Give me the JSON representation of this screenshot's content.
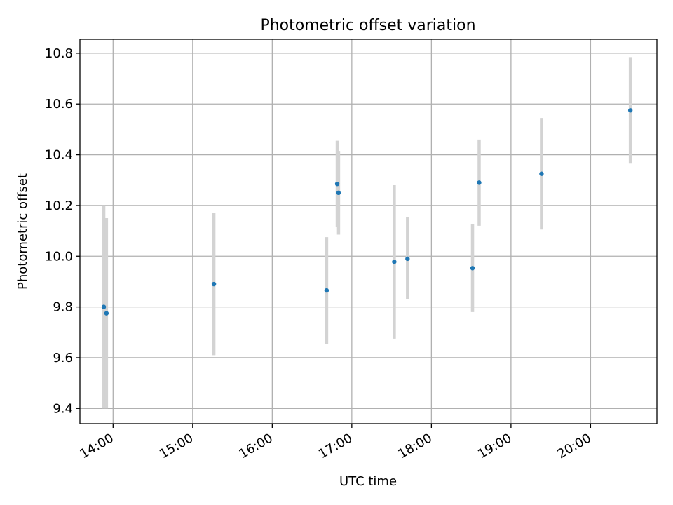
{
  "chart_data": {
    "type": "scatter",
    "title": "Photometric offset variation",
    "xlabel": "UTC time",
    "ylabel": "Photometric offset",
    "x_ticks": [
      "14:00",
      "15:00",
      "16:00",
      "17:00",
      "18:00",
      "19:00",
      "20:00"
    ],
    "y_ticks": [
      "9.4",
      "9.6",
      "9.8",
      "10.0",
      "10.2",
      "10.4",
      "10.6",
      "10.8"
    ],
    "xlim": [
      "13:35",
      "20:50"
    ],
    "ylim": [
      9.34,
      10.855
    ],
    "grid": true,
    "colors": {
      "point": "#1f77b4",
      "errorbar": "#d3d3d3",
      "grid": "#b0b0b0"
    },
    "points": [
      {
        "time": "13:53",
        "y": 9.8,
        "yerr_low": 9.4,
        "yerr_high": 10.2
      },
      {
        "time": "13:55",
        "y": 9.775,
        "yerr_low": 9.4,
        "yerr_high": 10.15
      },
      {
        "time": "15:16",
        "y": 9.89,
        "yerr_low": 9.61,
        "yerr_high": 10.17
      },
      {
        "time": "16:41",
        "y": 9.865,
        "yerr_low": 9.655,
        "yerr_high": 10.075
      },
      {
        "time": "16:49",
        "y": 10.285,
        "yerr_low": 10.115,
        "yerr_high": 10.455
      },
      {
        "time": "16:50",
        "y": 10.25,
        "yerr_low": 10.085,
        "yerr_high": 10.415
      },
      {
        "time": "17:32",
        "y": 9.978,
        "yerr_low": 9.675,
        "yerr_high": 10.28
      },
      {
        "time": "17:42",
        "y": 9.99,
        "yerr_low": 9.83,
        "yerr_high": 10.155
      },
      {
        "time": "18:31",
        "y": 9.953,
        "yerr_low": 9.78,
        "yerr_high": 10.125
      },
      {
        "time": "18:36",
        "y": 10.29,
        "yerr_low": 10.12,
        "yerr_high": 10.46
      },
      {
        "time": "19:23",
        "y": 10.325,
        "yerr_low": 10.105,
        "yerr_high": 10.545
      },
      {
        "time": "20:30",
        "y": 10.575,
        "yerr_low": 10.365,
        "yerr_high": 10.785
      }
    ]
  }
}
